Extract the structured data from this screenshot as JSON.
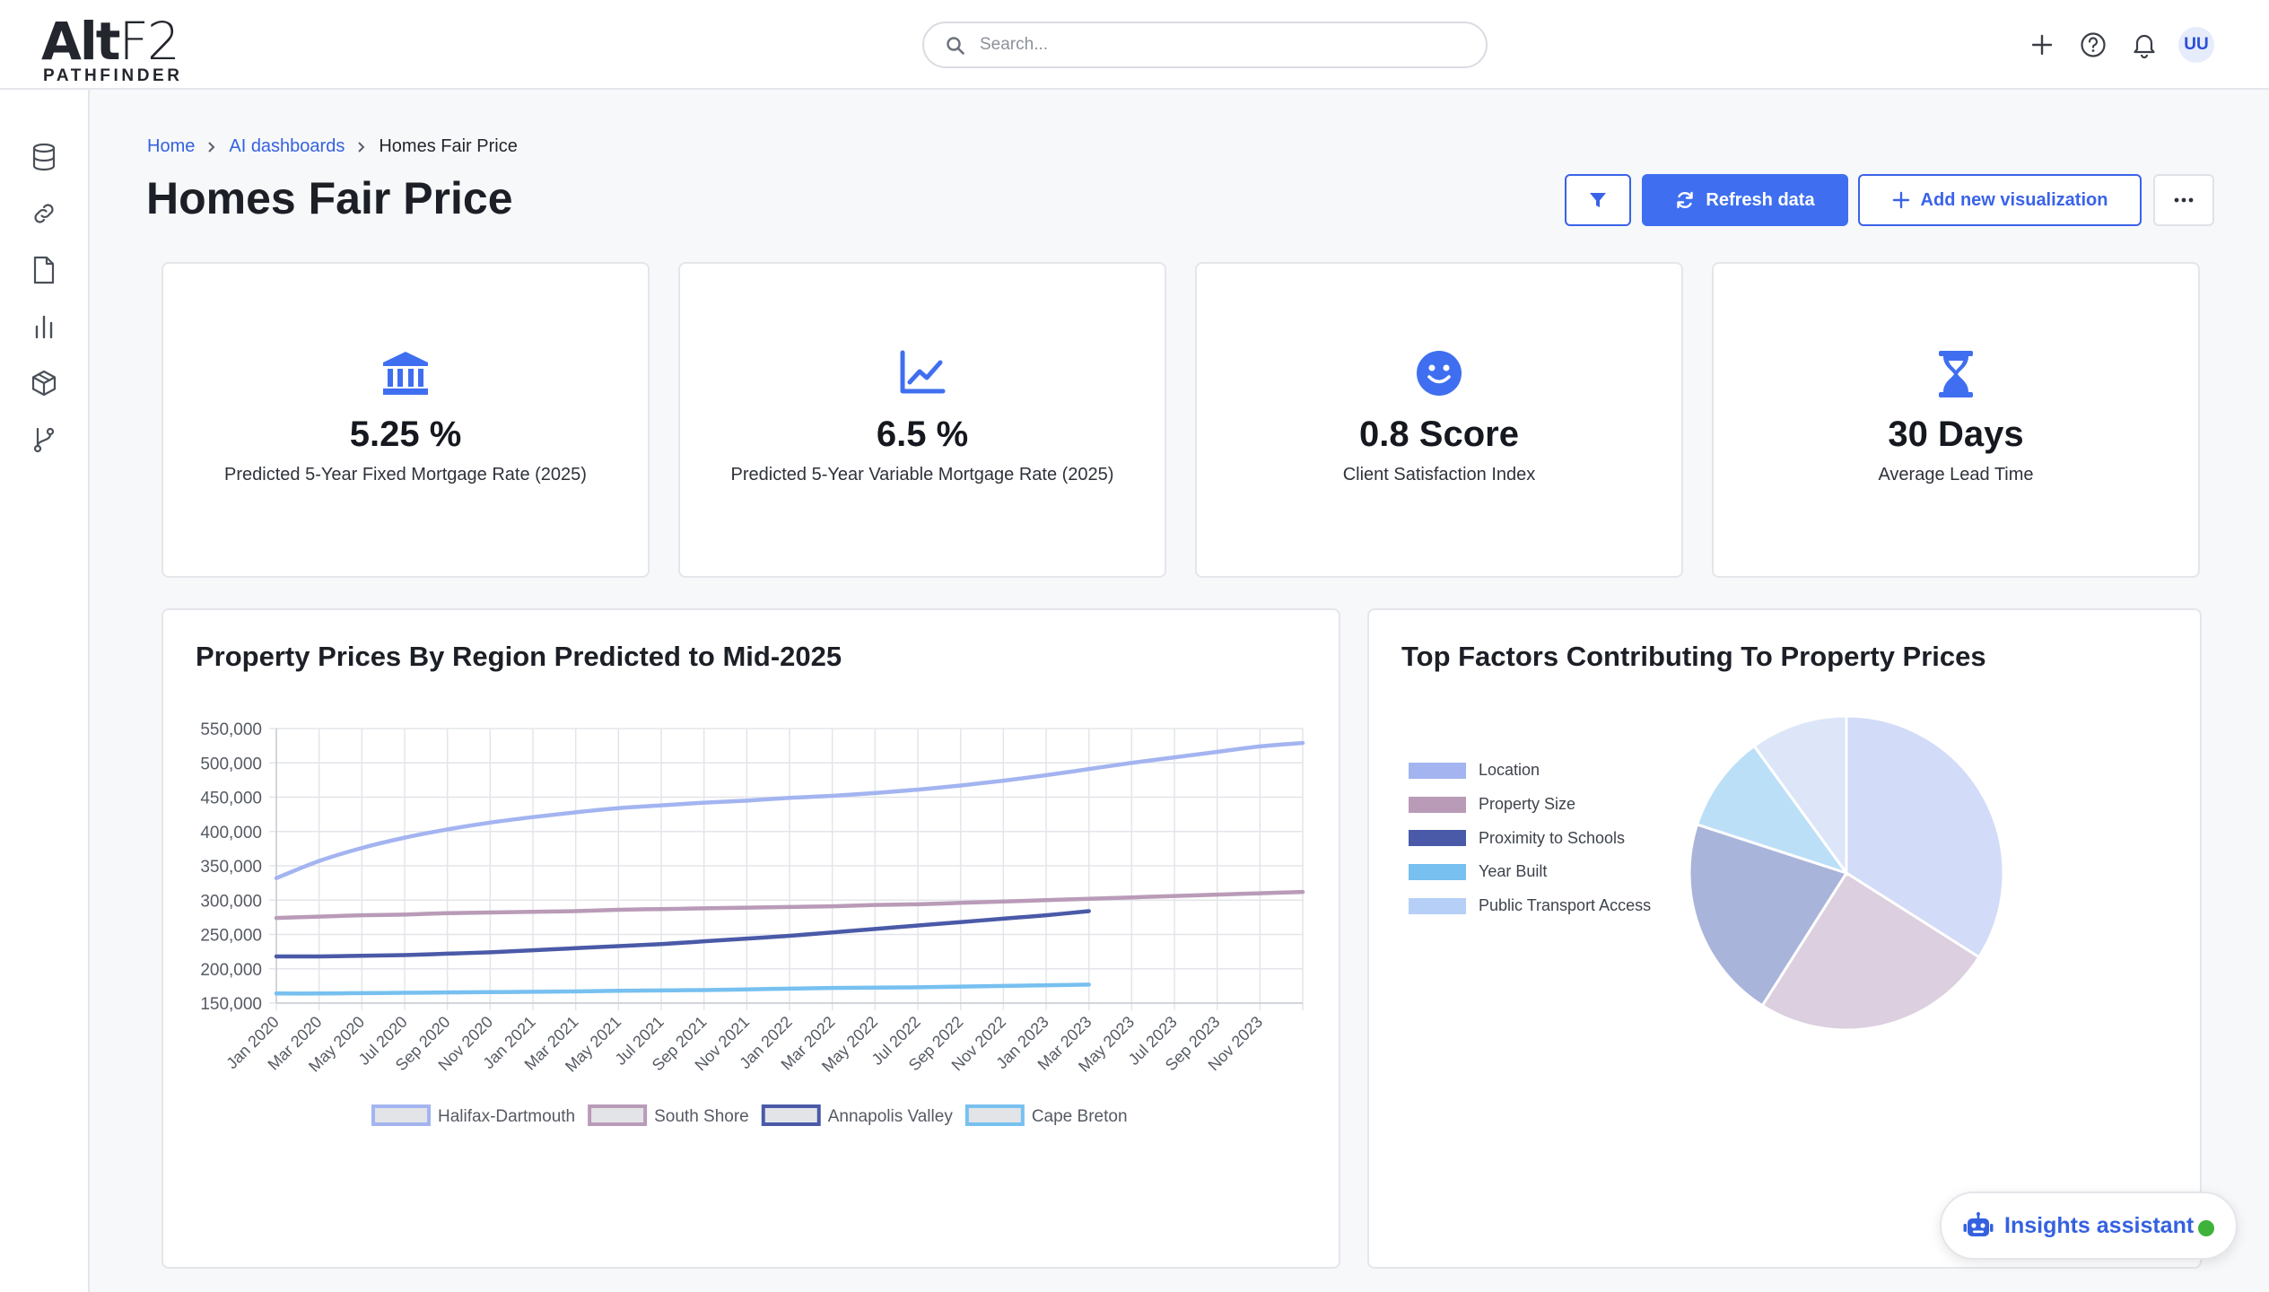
{
  "logo": {
    "main": "AltF2",
    "main_bold": "Alt",
    "main_light": "F2",
    "sub": "PATHFINDER"
  },
  "search": {
    "placeholder": "Search..."
  },
  "user": {
    "initials": "UU"
  },
  "topbar_icons": [
    "plus-icon",
    "help-icon",
    "bell-icon"
  ],
  "sidebar": {
    "icons": [
      "database-icon",
      "link-icon",
      "document-icon",
      "bar-chart-icon",
      "cube-icon",
      "git-branch-icon"
    ]
  },
  "breadcrumb": {
    "home": "Home",
    "section": "AI dashboards",
    "current": "Homes Fair Price"
  },
  "page": {
    "title": "Homes Fair Price"
  },
  "toolbar": {
    "refresh_label": "Refresh data",
    "add_label": "Add new visualization",
    "more_label": "···"
  },
  "kpis": [
    {
      "icon": "bank-icon",
      "value": "5.25 %",
      "label": "Predicted 5-Year Fixed Mortgage Rate (2025)"
    },
    {
      "icon": "trend-chart-icon",
      "value": "6.5 %",
      "label": "Predicted 5-Year Variable Mortgage Rate (2025)"
    },
    {
      "icon": "smiley-icon",
      "value": "0.8 Score",
      "label": "Client Satisfaction Index"
    },
    {
      "icon": "hourglass-icon",
      "value": "30 Days",
      "label": "Average Lead Time"
    }
  ],
  "colors": {
    "accent": "#3f6ff0",
    "link": "#3561e0",
    "status_online": "#3fb23a"
  },
  "chart_data": [
    {
      "type": "line",
      "title": "Property Prices By Region Predicted to Mid-2025",
      "xlabel": "",
      "ylabel": "",
      "ylim": [
        150000,
        550000
      ],
      "yticks": [
        "550,000",
        "500,000",
        "450,000",
        "400,000",
        "350,000",
        "300,000",
        "250,000",
        "200,000",
        "150,000"
      ],
      "xticks": [
        "Jan 2020",
        "Mar 2020",
        "May 2020",
        "Jul 2020",
        "Sep 2020",
        "Nov 2020",
        "Jan 2021",
        "Mar 2021",
        "May 2021",
        "Jul 2021",
        "Sep 2021",
        "Nov 2021",
        "Jan 2022",
        "Mar 2022",
        "May 2022",
        "Jul 2022",
        "Sep 2022",
        "Nov 2022",
        "Jan 2023",
        "Mar 2023",
        "May 2023",
        "Jul 2023",
        "Sep 2023",
        "Nov 2023"
      ],
      "grid": true,
      "legend": "bottom",
      "series": [
        {
          "name": "Halifax-Dartmouth",
          "color": "#a3b4f0",
          "values": [
            332000,
            357000,
            376000,
            391000,
            403000,
            413000,
            421000,
            428000,
            434000,
            438000,
            442000,
            445000,
            449000,
            452000,
            456000,
            461000,
            467000,
            474000,
            482000,
            491000,
            500000,
            508000,
            516000,
            524000,
            529000
          ]
        },
        {
          "name": "South Shore",
          "color": "#b99bb8",
          "values": [
            274000,
            276000,
            278000,
            279000,
            281000,
            282000,
            283000,
            284000,
            286000,
            287000,
            288000,
            289000,
            290000,
            291000,
            293000,
            294000,
            296000,
            298000,
            300000,
            302000,
            304000,
            306000,
            308000,
            310000,
            312000
          ]
        },
        {
          "name": "Annapolis Valley",
          "color": "#4a5aa8",
          "values": [
            218000,
            218000,
            219000,
            220000,
            222000,
            224000,
            227000,
            230000,
            233000,
            236000,
            240000,
            244000,
            248000,
            253000,
            258000,
            263000,
            268000,
            273000,
            278000,
            284000
          ]
        },
        {
          "name": "Cape Breton",
          "color": "#77c0f0",
          "values": [
            164000,
            164000,
            164500,
            165000,
            165500,
            166000,
            166500,
            167000,
            168000,
            168500,
            169000,
            170000,
            171000,
            172000,
            172500,
            173000,
            174000,
            175000,
            176000,
            177000
          ]
        }
      ]
    },
    {
      "type": "pie",
      "title": "Top Factors Contributing To Property Prices",
      "legend": "left",
      "slices": [
        {
          "name": "Location",
          "value": 34,
          "color": "#d2dbf7"
        },
        {
          "name": "Property Size",
          "value": 25,
          "color": "#dccfdf"
        },
        {
          "name": "Proximity to Schools",
          "value": 21,
          "color": "#a9b4da"
        },
        {
          "name": "Year Built",
          "value": 10,
          "color": "#bcdff8"
        },
        {
          "name": "Public Transport Access",
          "value": 10,
          "color": "#dde6f8"
        }
      ],
      "legend_colors": [
        "#a3b4f0",
        "#b99bb8",
        "#4a5aa8",
        "#77c0f0",
        "#b6cff7"
      ]
    }
  ],
  "insights": {
    "label": "Insights assistant"
  }
}
